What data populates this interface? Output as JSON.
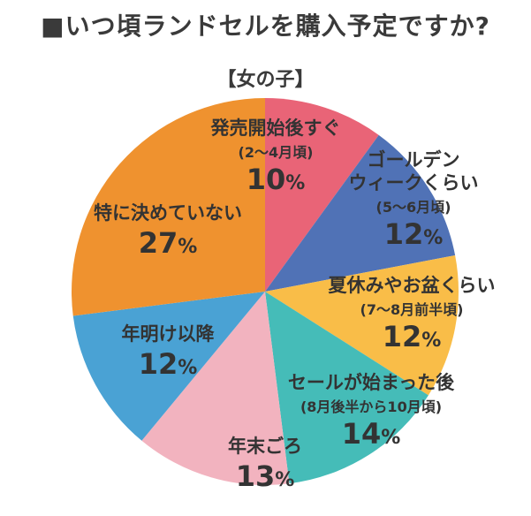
{
  "title": "■いつ頃ランドセルを購入予定ですか?",
  "subtitle": "【女の子】",
  "chart_data": {
    "type": "pie",
    "title": "■いつ頃ランドセルを購入予定ですか?",
    "subtitle": "【女の子】",
    "unit": "%",
    "slices": [
      {
        "label": "発売開始後すぐ",
        "note": "(2〜4月頃)",
        "value": 10,
        "color": "#e96477"
      },
      {
        "label": "ゴールデンウィークくらい",
        "label_lines": [
          "ゴールデン",
          "ウィークくらい"
        ],
        "note": "(5〜6月頃)",
        "value": 12,
        "color": "#5072b6"
      },
      {
        "label": "夏休みやお盆くらい",
        "note": "(7〜8月前半頃)",
        "value": 12,
        "color": "#f9bd48"
      },
      {
        "label": "セールが始まった後",
        "note": "(8月後半から10月頃)",
        "value": 14,
        "color": "#45bcb8"
      },
      {
        "label": "年末ごろ",
        "note": "",
        "value": 13,
        "color": "#f2b3bf"
      },
      {
        "label": "年明け以降",
        "note": "",
        "value": 12,
        "color": "#4aa2d4"
      },
      {
        "label": "特に決めていない",
        "note": "",
        "value": 27,
        "color": "#ef922f"
      }
    ]
  }
}
